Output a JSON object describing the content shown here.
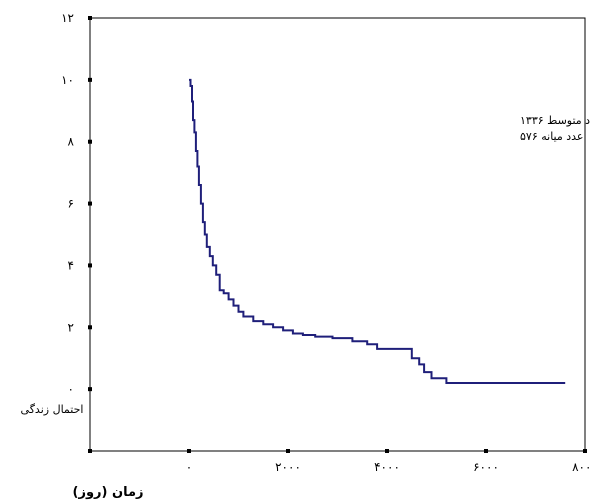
{
  "chart_data": {
    "type": "line",
    "step": true,
    "xlabel": "زمان (روز)",
    "ylabel": "احتمال زندگی",
    "xlim": [
      -2000,
      8000
    ],
    "ylim": [
      -2,
      12
    ],
    "x_ticks": [
      -2000,
      0,
      2000,
      4000,
      6000,
      8000
    ],
    "x_tick_labels": [
      "",
      "۰",
      "۲۰۰۰",
      "۴۰۰۰",
      "۶۰۰۰",
      "۸۰۰۰"
    ],
    "y_ticks": [
      -2,
      0,
      2,
      4,
      6,
      8,
      10,
      12
    ],
    "y_tick_labels": [
      "",
      "۰",
      "۲",
      "۴",
      "۶",
      "۸",
      "۱۰",
      "۱۲"
    ],
    "annotations": [
      "عدد متوسط ۱۳۳۶",
      "عدد میانه ۵۷۶"
    ],
    "grid": false,
    "series": [
      {
        "color": "#1f1f7a",
        "x": [
          0,
          30,
          60,
          80,
          110,
          140,
          170,
          200,
          240,
          280,
          320,
          360,
          420,
          480,
          550,
          620,
          700,
          800,
          900,
          1000,
          1100,
          1300,
          1500,
          1700,
          1900,
          2100,
          2300,
          2550,
          2900,
          3300,
          3600,
          3800,
          4500,
          4650,
          4750,
          4900,
          5200,
          7600
        ],
        "y": [
          10,
          9.8,
          9.3,
          8.7,
          8.3,
          7.7,
          7.2,
          6.6,
          6.0,
          5.4,
          5.0,
          4.6,
          4.3,
          4.0,
          3.7,
          3.2,
          3.1,
          2.9,
          2.7,
          2.5,
          2.35,
          2.2,
          2.1,
          2.0,
          1.9,
          1.8,
          1.75,
          1.7,
          1.65,
          1.55,
          1.45,
          1.3,
          1.0,
          0.8,
          0.55,
          0.35,
          0.2,
          0.2
        ]
      }
    ]
  }
}
